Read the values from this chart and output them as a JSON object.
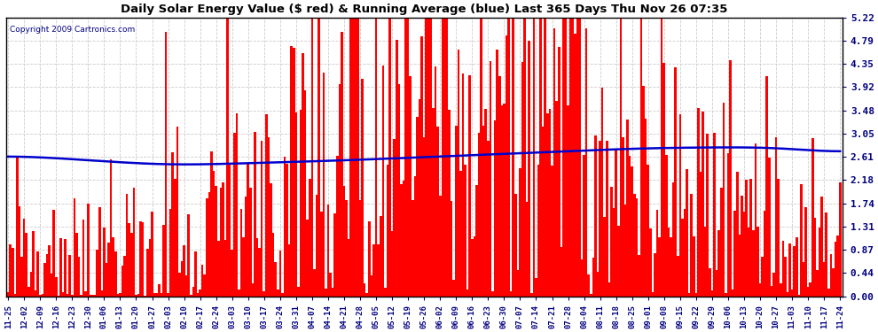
{
  "title": "Daily Solar Energy Value ($ red) & Running Average (blue) Last 365 Days Thu Nov 26 07:35",
  "copyright": "Copyright 2009 Cartronics.com",
  "bar_color": "#ff0000",
  "avg_color": "#0000cc",
  "bg_color": "#ffffff",
  "grid_color": "#cccccc",
  "yticks": [
    0.0,
    0.44,
    0.87,
    1.31,
    1.74,
    2.18,
    2.61,
    3.05,
    3.48,
    3.92,
    4.35,
    4.79,
    5.22
  ],
  "ymax": 5.22,
  "ymin": 0.0,
  "n_days": 365,
  "start_date": "2008-11-25",
  "seed": 42,
  "tick_interval": 7
}
